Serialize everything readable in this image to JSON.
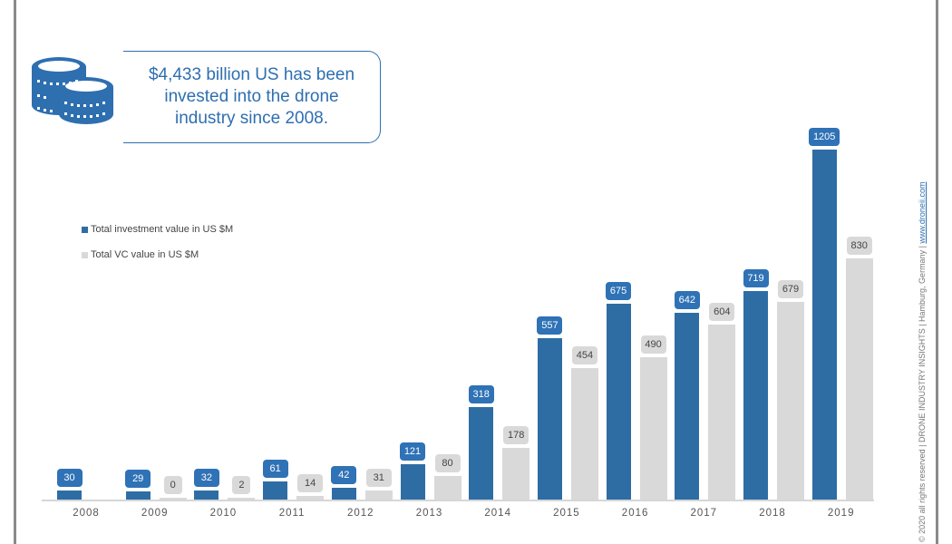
{
  "callout": {
    "icon": "coins-icon",
    "text": "$4,433 billion US has been invested into the drone industry since 2008."
  },
  "legend": [
    {
      "label": "Total investment value in US $M",
      "color": "#2e6da4"
    },
    {
      "label": "Total VC value in US $M",
      "color": "#d9d9d9"
    }
  ],
  "credit": {
    "text": "© 2020 all rights reserved | DRONE INDUSTRY INSIGHTS | Hamburg, Germany | ",
    "link": "www.droneii.com"
  },
  "chart_data": {
    "type": "bar",
    "title": "",
    "xlabel": "",
    "ylabel": "",
    "categories": [
      "2008",
      "2009",
      "2010",
      "2011",
      "2012",
      "2013",
      "2014",
      "2015",
      "2016",
      "2017",
      "2018",
      "2019"
    ],
    "series": [
      {
        "name": "Total investment value in US $M",
        "color": "#2e6da4",
        "values": [
          30,
          29,
          32,
          61,
          42,
          121,
          318,
          557,
          675,
          642,
          719,
          1205
        ]
      },
      {
        "name": "Total VC value in US $M",
        "color": "#d9d9d9",
        "values": [
          null,
          0,
          2,
          14,
          31,
          80,
          178,
          454,
          490,
          604,
          679,
          830
        ]
      }
    ],
    "data_labels": true,
    "grid": false,
    "legend_position": "upper-left",
    "ylim": [
      0,
      1205
    ]
  }
}
